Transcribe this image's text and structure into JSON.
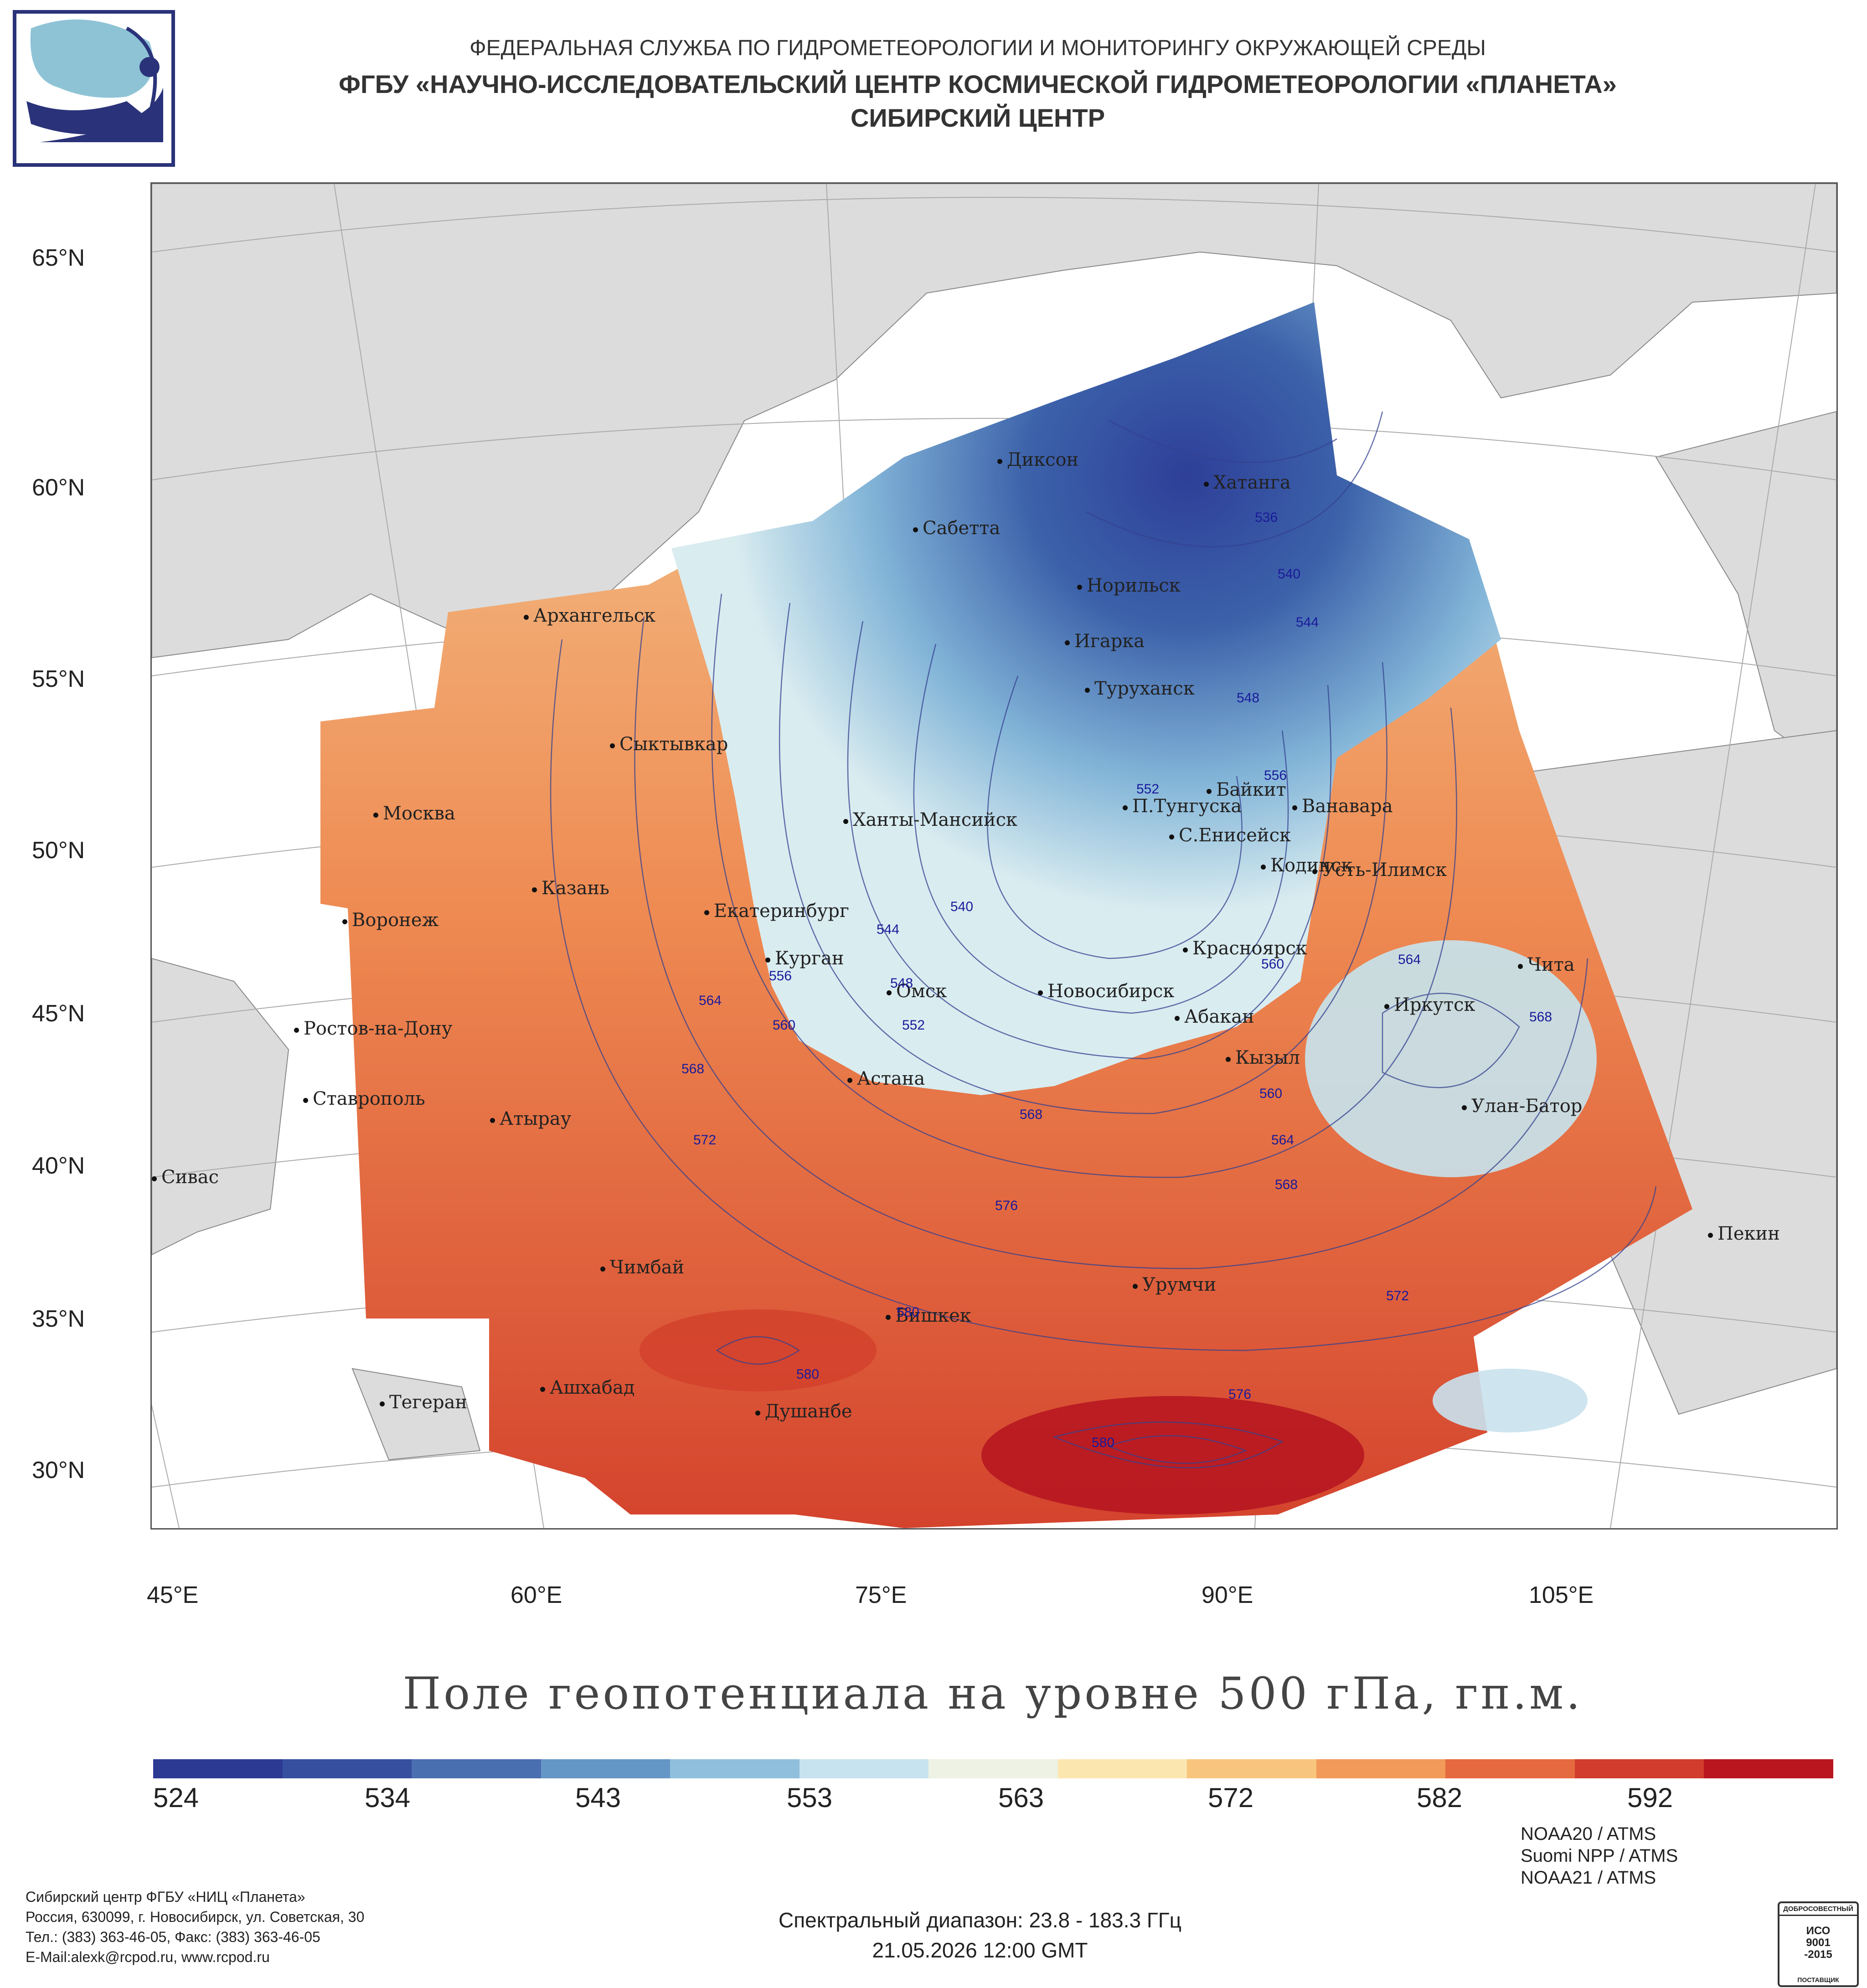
{
  "header": {
    "line1": "ФЕДЕРАЛЬНАЯ СЛУЖБА ПО ГИДРОМЕТЕОРОЛОГИИ И МОНИТОРИНГУ ОКРУЖАЮЩЕЙ СРЕДЫ",
    "line2": "ФГБУ «НАУЧНО-ИССЛЕДОВАТЕЛЬСКИЙ ЦЕНТР КОСМИЧЕСКОЙ ГИДРОМЕТЕОРОЛОГИИ «ПЛАНЕТА»",
    "line3": "СИБИРСКИЙ ЦЕНТР"
  },
  "map": {
    "lat_labels": [
      "65°N",
      "60°N",
      "55°N",
      "50°N",
      "45°N",
      "40°N",
      "35°N",
      "30°N"
    ],
    "lon_labels": [
      "45°E",
      "60°E",
      "75°E",
      "90°E",
      "105°E"
    ],
    "cities": [
      "Диксон",
      "Хатанга",
      "Сабетта",
      "Норильск",
      "Архангельск",
      "Игарка",
      "Туруханск",
      "Сыктывкар",
      "Байкит",
      "Москва",
      "П.Тунгуска",
      "Ванавара",
      "Ханты-Мансийск",
      "С.Енисейск",
      "Казань",
      "Кодинск",
      "Усть-Илимск",
      "Екатеринбург",
      "Воронеж",
      "Красноярск",
      "Курган",
      "Чита",
      "Омск",
      "Новосибирск",
      "Иркутск",
      "Ростов-на-Дону",
      "Абакан",
      "Кызыл",
      "Астана",
      "Ставрополь",
      "Улан-Батор",
      "Атырау",
      "Сивас",
      "Пекин",
      "Чимбай",
      "Урумчи",
      "Бишкек",
      "Ашхабад",
      "Тегеран",
      "Душанбе"
    ],
    "contour_labels": [
      "536",
      "540",
      "544",
      "548",
      "552",
      "556",
      "540",
      "544",
      "556",
      "548",
      "552",
      "560",
      "564",
      "560",
      "564",
      "568",
      "568",
      "560",
      "564",
      "568",
      "572",
      "568",
      "576",
      "572",
      "580",
      "580",
      "576",
      "580"
    ]
  },
  "legend": {
    "title": "Поле геопотенциала на уровне 500 гПа, гп.м.",
    "ticks": [
      "524",
      "534",
      "543",
      "553",
      "563",
      "572",
      "582",
      "592"
    ],
    "colors": [
      "#2c3a93",
      "#36509f",
      "#4a6fb0",
      "#6597c6",
      "#8fbfdc",
      "#c6e3ef",
      "#eef2e4",
      "#fbe6b0",
      "#f8c57e",
      "#f29a5a",
      "#e56a3f",
      "#d23c2c",
      "#b9161f"
    ]
  },
  "footer": {
    "org_lines": [
      "Сибирский центр ФГБУ «НИЦ «Планета»",
      "Россия, 630099, г. Новосибирск, ул. Советская, 30",
      "Тел.: (383) 363-46-05, Факс: (383) 363-46-05",
      "E-Mail:alexk@rcpod.ru, www.rcpod.ru"
    ],
    "spectral": "Спектральный диапазон: 23.8 - 183.3 ГГц",
    "datetime": "21.05.2026 12:00 GMT",
    "instruments": [
      "NOAA20 / ATMS",
      "Suomi NPP / ATMS",
      "NOAA21 / ATMS"
    ],
    "iso": {
      "top": "ДОБРОСОВЕСТНЫЙ",
      "mid1": "ИСО",
      "mid2": "9001",
      "mid3": "-2015",
      "bottom": "ПОСТАВЩИК"
    }
  }
}
